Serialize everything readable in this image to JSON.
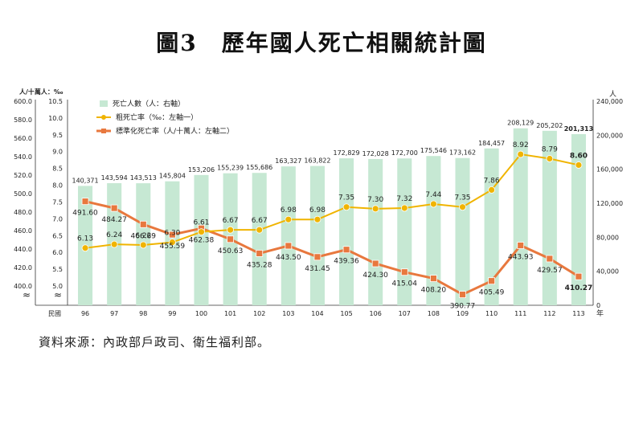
{
  "title": "圖3　歷年國人死亡相關統計圖",
  "source": "資料來源：內政部戶政司、衛生福利部。",
  "chart_data": {
    "type": "bar+line",
    "categories": [
      "96",
      "97",
      "98",
      "99",
      "100",
      "101",
      "102",
      "103",
      "104",
      "105",
      "106",
      "107",
      "108",
      "109",
      "110",
      "111",
      "112",
      "113"
    ],
    "x_label": "民國",
    "x_unit": "年",
    "left_axis1_label": "人/十萬人：‰",
    "left_axis2_ticks": [
      "400.0",
      "420.0",
      "440.0",
      "460.0",
      "480.0",
      "500.0",
      "520.0",
      "540.0",
      "560.0",
      "580.0",
      "600.0"
    ],
    "left_axis1_ticks": [
      "5.0",
      "5.5",
      "6.0",
      "6.5",
      "7.0",
      "7.5",
      "8.0",
      "8.5",
      "9.0",
      "9.5",
      "10.0",
      "10.5"
    ],
    "right_axis_label": "人",
    "right_axis_ticks": [
      "0",
      "40,000",
      "80,000",
      "120,000",
      "160,000",
      "200,000",
      "240,000"
    ],
    "axis_break_symbol": "≈",
    "colors": {
      "bar": "#c6e8d3",
      "crude": "#f0b400",
      "standardized": "#e8783e"
    },
    "series": [
      {
        "name": "死亡人數（人：右軸）",
        "type": "bar",
        "axis": "right",
        "values": [
          140371,
          143594,
          143513,
          145804,
          153206,
          155239,
          155686,
          163327,
          163822,
          172829,
          172028,
          172700,
          175546,
          173162,
          184457,
          208129,
          205202,
          201313
        ],
        "labels": [
          "140,371",
          "143,594",
          "143,513",
          "145,804",
          "153,206",
          "155,239",
          "155,686",
          "163,327",
          "163,822",
          "172,829",
          "172,028",
          "172,700",
          "175,546",
          "173,162",
          "184,457",
          "208,129",
          "205,202",
          "201,313"
        ]
      },
      {
        "name": "粗死亡率（‰：左軸一）",
        "type": "line",
        "axis": "left1",
        "values": [
          6.13,
          6.24,
          6.22,
          6.3,
          6.61,
          6.67,
          6.67,
          6.98,
          6.98,
          7.35,
          7.3,
          7.32,
          7.44,
          7.35,
          7.86,
          8.92,
          8.79,
          8.6
        ],
        "labels": [
          "6.13",
          "6.24",
          "6.22",
          "6.30",
          "6.61",
          "6.67",
          "6.67",
          "6.98",
          "6.98",
          "7.35",
          "7.30",
          "7.32",
          "7.44",
          "7.35",
          "7.86",
          "8.92",
          "8.79",
          "8.60"
        ]
      },
      {
        "name": "標準化死亡率（人/十萬人：左軸二）",
        "type": "line",
        "axis": "left2",
        "values": [
          491.6,
          484.27,
          466.69,
          455.59,
          462.38,
          450.63,
          435.28,
          443.5,
          431.45,
          439.36,
          424.3,
          415.04,
          408.2,
          390.77,
          405.49,
          443.93,
          429.57,
          410.27
        ],
        "labels": [
          "491.60",
          "484.27",
          "466.69",
          "455.59",
          "462.38",
          "450.63",
          "435.28",
          "443.50",
          "431.45",
          "439.36",
          "424.30",
          "415.04",
          "408.20",
          "390.77",
          "405.49",
          "443.93",
          "429.57",
          "410.27"
        ]
      }
    ],
    "bold_last_labels": true
  }
}
